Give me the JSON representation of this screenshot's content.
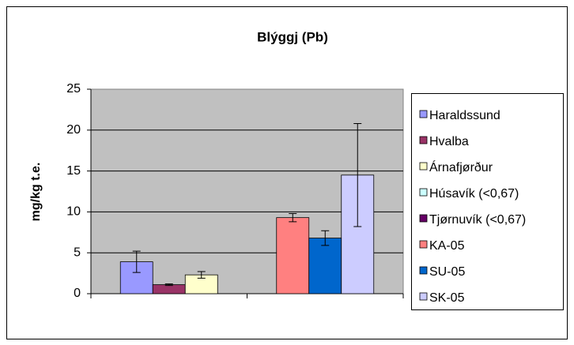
{
  "chart_data": {
    "type": "bar",
    "title": "Blýggj (Pb)",
    "y_label": "mg/kg t.e.",
    "categories": [
      null,
      null
    ],
    "series": [
      {
        "name": "Haraldssund",
        "color": "#9999ff",
        "values": [
          3.9,
          null
        ],
        "errors": [
          1.3,
          null
        ]
      },
      {
        "name": "Hvalba",
        "color": "#993366",
        "values": [
          1.1,
          null
        ],
        "errors": [
          0.1,
          null
        ]
      },
      {
        "name": "Árnafjørður",
        "color": "#ffffcc",
        "values": [
          2.3,
          null
        ],
        "errors": [
          0.4,
          null
        ]
      },
      {
        "name": "Húsavík (<0,67)",
        "color": "#ccffff",
        "values": [
          null,
          null
        ],
        "errors": [
          null,
          null
        ]
      },
      {
        "name": "Tjørnuvík (<0,67)",
        "color": "#660066",
        "values": [
          null,
          null
        ],
        "errors": [
          null,
          null
        ]
      },
      {
        "name": "KA-05",
        "color": "#ff8080",
        "values": [
          null,
          9.3
        ],
        "errors": [
          null,
          0.5
        ]
      },
      {
        "name": "SU-05",
        "color": "#0066cc",
        "values": [
          null,
          6.8
        ],
        "errors": [
          null,
          0.9
        ]
      },
      {
        "name": "SK-05",
        "color": "#ccccff",
        "values": [
          null,
          14.5
        ],
        "errors": [
          null,
          6.3
        ]
      }
    ],
    "ylim": [
      0,
      25
    ],
    "yticks": [
      0,
      5,
      10,
      15,
      20,
      25
    ],
    "grid": true,
    "legend": "right"
  }
}
